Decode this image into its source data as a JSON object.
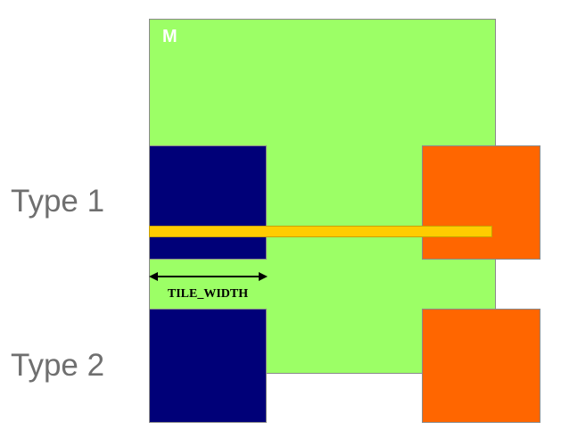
{
  "diagram": {
    "matrix_label": "M",
    "type1_label": "Type 1",
    "type2_label": "Type 2",
    "dimension_label": "TILE_WIDTH"
  },
  "colors": {
    "matrix_fill": "#9cff66",
    "tile_dark_fill": "#000078",
    "tile_orange_fill": "#ff6600",
    "row_bar_fill": "#ffcc00"
  }
}
